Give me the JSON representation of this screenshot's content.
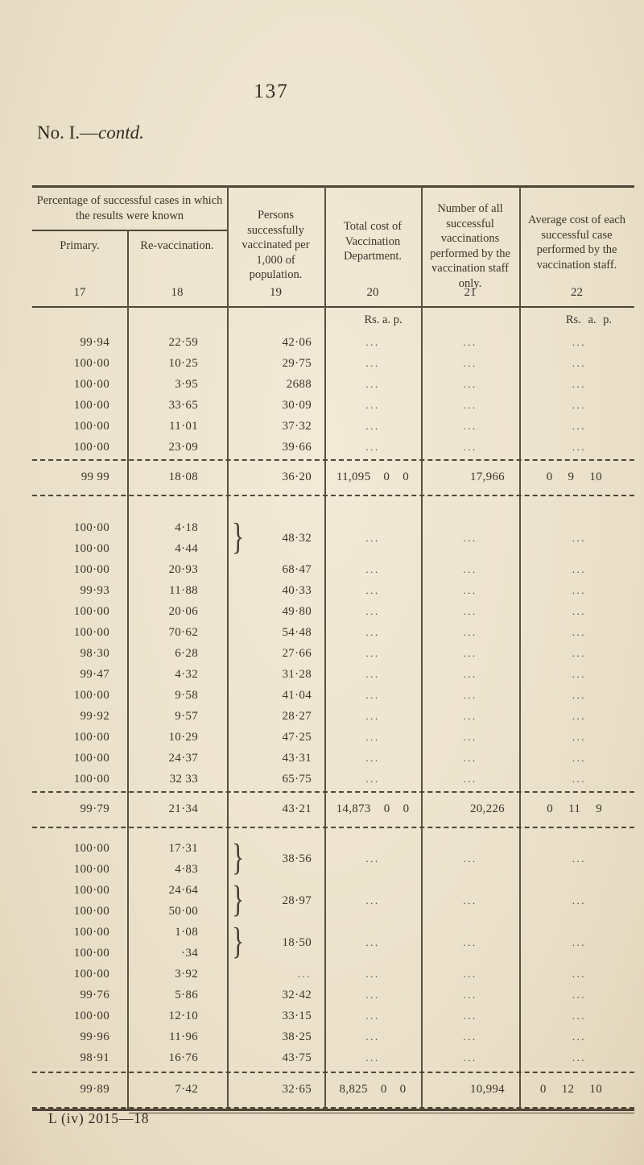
{
  "page": {
    "number": "137",
    "caption_roman": "No. I.—",
    "caption_italic": "contd.",
    "footer": "L (iv) 2015—18"
  },
  "table": {
    "brace": "}",
    "ellipsis": "...",
    "units": "Rs. a. p.",
    "group_header": "Percentage of successful cases in which the results were known",
    "h_primary": "Primary.",
    "h_revacc": "Re-vaccination.",
    "h_per1000": "Persons successfully vaccinated per 1,000 of population.",
    "h_cost": "Total cost of Vaccination Department.",
    "h_count": "Number of all successful vaccinations performed by the vaccination staff only.",
    "h_avg": "Average cost of each successful case performed by the vaccination staff.",
    "col_numbers": [
      "17",
      "18",
      "19",
      "20",
      "21",
      "22"
    ],
    "s1": {
      "groups": [
        {
          "rows": [
            {
              "p": "99·94",
              "r": "22·59"
            }
          ],
          "n": "42·06"
        },
        {
          "rows": [
            {
              "p": "100·00",
              "r": "10·25"
            }
          ],
          "n": "29·75"
        },
        {
          "rows": [
            {
              "p": "100·00",
              "r": "3·95"
            }
          ],
          "n": "2688"
        },
        {
          "rows": [
            {
              "p": "100·00",
              "r": "33·65"
            }
          ],
          "n": "30·09"
        },
        {
          "rows": [
            {
              "p": "100·00",
              "r": "11·01"
            }
          ],
          "n": "37·32"
        },
        {
          "rows": [
            {
              "p": "100·00",
              "r": "23·09"
            }
          ],
          "n": "39·66"
        }
      ],
      "total": {
        "p": "99 99",
        "r": "18·08",
        "n": "36·20",
        "tc": "11,095 0 0",
        "ns": "17,966",
        "ac": "0 9 10"
      }
    },
    "s2": {
      "groups": [
        {
          "rows": [
            {
              "p": "100·00",
              "r": "4·18"
            },
            {
              "p": "100·00",
              "r": "4·44"
            }
          ],
          "n": "48·32"
        },
        {
          "rows": [
            {
              "p": "100·00",
              "r": "20·93"
            }
          ],
          "n": "68·47"
        },
        {
          "rows": [
            {
              "p": "99·93",
              "r": "11·88"
            }
          ],
          "n": "40·33"
        },
        {
          "rows": [
            {
              "p": "100·00",
              "r": "20·06"
            }
          ],
          "n": "49·80"
        },
        {
          "rows": [
            {
              "p": "100·00",
              "r": "70·62"
            }
          ],
          "n": "54·48"
        },
        {
          "rows": [
            {
              "p": "98·30",
              "r": "6·28"
            }
          ],
          "n": "27·66"
        },
        {
          "rows": [
            {
              "p": "99·47",
              "r": "4·32"
            }
          ],
          "n": "31·28"
        },
        {
          "rows": [
            {
              "p": "100·00",
              "r": "9·58"
            }
          ],
          "n": "41·04"
        },
        {
          "rows": [
            {
              "p": "99·92",
              "r": "9·57"
            }
          ],
          "n": "28·27"
        },
        {
          "rows": [
            {
              "p": "100·00",
              "r": "10·29"
            }
          ],
          "n": "47·25"
        },
        {
          "rows": [
            {
              "p": "100·00",
              "r": "24·37"
            }
          ],
          "n": "43·31"
        },
        {
          "rows": [
            {
              "p": "100·00",
              "r": "32 33"
            }
          ],
          "n": "65·75"
        }
      ],
      "total": {
        "p": "99·79",
        "r": "21·34",
        "n": "43·21",
        "tc": "14,873 0 0",
        "ns": "20,226",
        "ac": "0 11 9"
      }
    },
    "s3": {
      "groups": [
        {
          "rows": [
            {
              "p": "100·00",
              "r": "17·31"
            },
            {
              "p": "100·00",
              "r": "4·83"
            }
          ],
          "n": "38·56"
        },
        {
          "rows": [
            {
              "p": "100·00",
              "r": "24·64"
            },
            {
              "p": "100·00",
              "r": "50·00"
            }
          ],
          "n": "28·97"
        },
        {
          "rows": [
            {
              "p": "100·00",
              "r": "1·08"
            },
            {
              "p": "100·00",
              "r": "·34"
            }
          ],
          "n": "18·50"
        },
        {
          "rows": [
            {
              "p": "100·00",
              "r": "3·92"
            }
          ],
          "n": "..."
        },
        {
          "rows": [
            {
              "p": "99·76",
              "r": "5·86"
            }
          ],
          "n": "32·42"
        },
        {
          "rows": [
            {
              "p": "100·00",
              "r": "12·10"
            }
          ],
          "n": "33·15"
        },
        {
          "rows": [
            {
              "p": "99·96",
              "r": "11·96"
            }
          ],
          "n": "38·25"
        },
        {
          "rows": [
            {
              "p": "98·91",
              "r": "16·76"
            }
          ],
          "n": "43·75"
        }
      ],
      "total": {
        "p": "99·89",
        "r": "7·42",
        "n": "32·65",
        "tc": "8,825 0 0",
        "ns": "10,994",
        "ac": "0 12 10"
      }
    }
  }
}
